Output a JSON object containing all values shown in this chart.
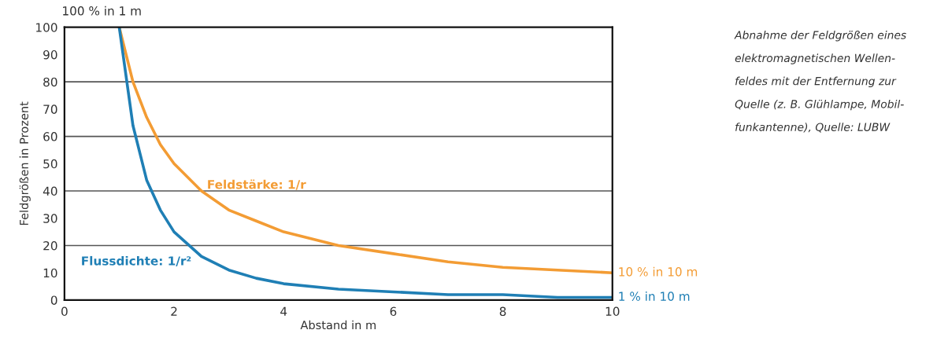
{
  "chart_data": {
    "type": "line",
    "xlabel": "Abstand in m",
    "ylabel": "Feldgrößen in Prozent",
    "x": [
      1,
      1.25,
      1.5,
      1.75,
      2,
      2.5,
      3,
      3.5,
      4,
      5,
      6,
      7,
      8,
      9,
      10
    ],
    "series": [
      {
        "name": "Feldstärke: 1/r",
        "color": "#f39c34",
        "values": [
          100,
          80,
          67,
          57,
          50,
          40,
          33,
          29,
          25,
          20,
          17,
          14,
          12,
          11,
          10
        ]
      },
      {
        "name": "Flussdichte: 1/r²",
        "color": "#1f7fb5",
        "values": [
          100,
          64,
          44,
          33,
          25,
          16,
          11,
          8,
          6,
          4,
          3,
          2,
          2,
          1,
          1
        ]
      }
    ],
    "xlim": [
      0,
      10
    ],
    "xticks": [
      0,
      2,
      4,
      6,
      8,
      10
    ],
    "ylim": [
      0,
      100
    ],
    "yticks": [
      0,
      10,
      20,
      30,
      40,
      50,
      60,
      70,
      80,
      90,
      100
    ],
    "grid": false,
    "ref_lines": [
      {
        "axis": "y",
        "value": 20,
        "label": null,
        "color": "#555555"
      },
      {
        "axis": "y",
        "value": 40,
        "label": null,
        "color": "#555555"
      },
      {
        "axis": "y",
        "value": 60,
        "label": null,
        "color": "#555555"
      },
      {
        "axis": "y",
        "value": 80,
        "label": null,
        "color": "#555555"
      }
    ],
    "line_style": "solid",
    "annotations": [
      "100 % in 1 m",
      "10 % in 10 m",
      "1 % in 10 m",
      "Abnahme der Feldgrößen eines\nelektromagnetischen Wellen-\nfeldes mit der Entfernung zur\nQuelle (z. B. Glühlampe, Mobil-\nfunkantenne), Quelle: LUBW"
    ]
  }
}
